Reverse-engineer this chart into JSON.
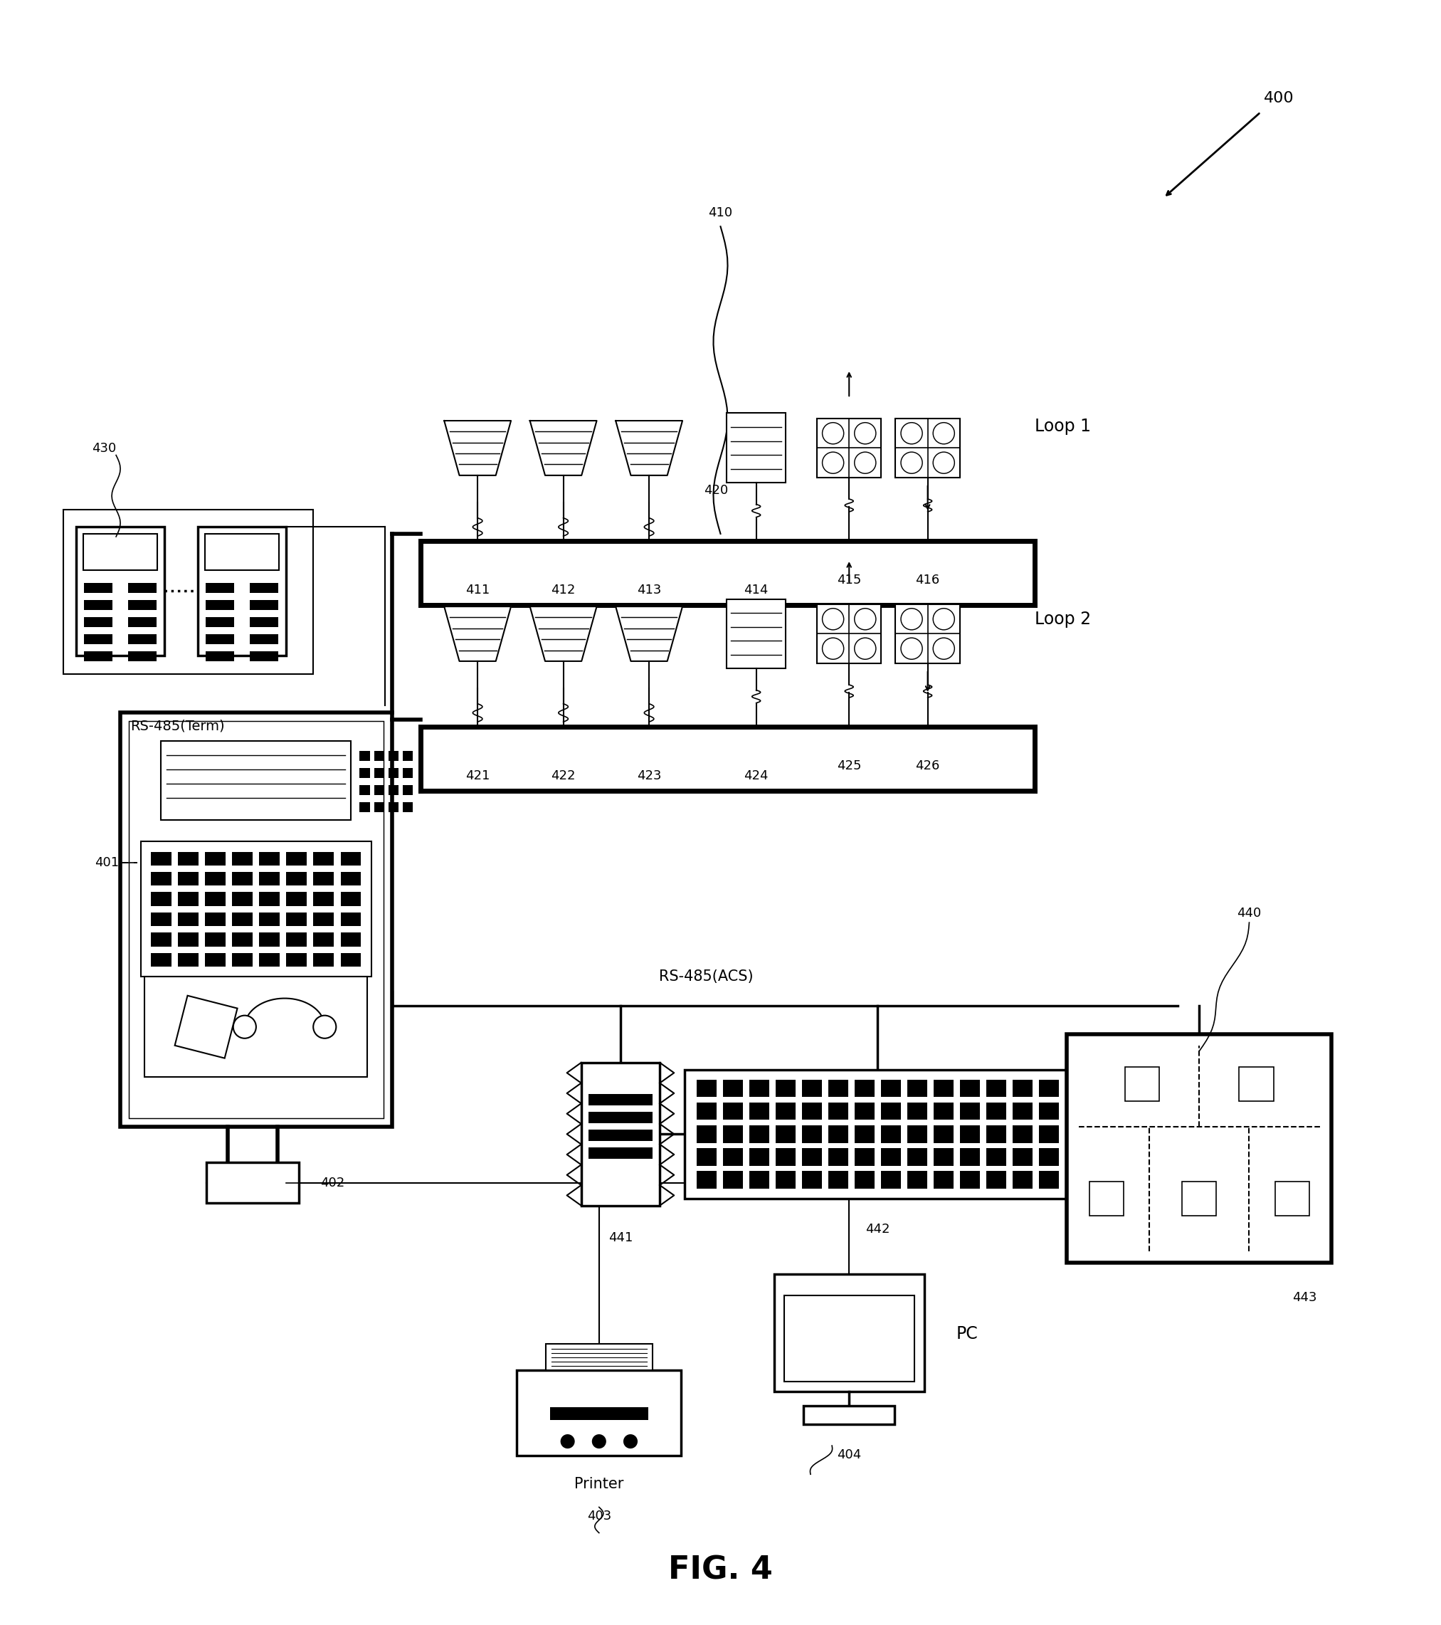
{
  "title": "FIG. 4",
  "bg_color": "#ffffff",
  "labels": {
    "loop1": "Loop 1",
    "loop2": "Loop 2",
    "rs485_term": "RS-485(Term)",
    "rs485_acs": "RS-485(ACS)",
    "printer": "Printer",
    "pc": "PC",
    "n400": "400",
    "n401": "401",
    "n402": "402",
    "n403": "403",
    "n404": "404",
    "n410": "410",
    "n411": "411",
    "n412": "412",
    "n413": "413",
    "n414": "414",
    "n415": "415",
    "n416": "416",
    "n420": "420",
    "n421": "421",
    "n422": "422",
    "n423": "423",
    "n424": "424",
    "n425": "425",
    "n426": "426",
    "n430": "430",
    "n440": "440",
    "n441": "441",
    "n442": "442",
    "n443": "443"
  }
}
